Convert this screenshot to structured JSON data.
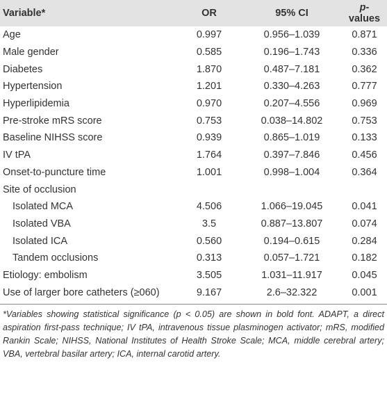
{
  "header": {
    "variable": "Variable*",
    "or": "OR",
    "ci": "95% CI",
    "p": {
      "italic": "p",
      "rest": "-values"
    }
  },
  "rows": [
    {
      "variable": "Age",
      "or": "0.997",
      "ci": "0.956–1.039",
      "p": "0.871"
    },
    {
      "variable": "Male gender",
      "or": "0.585",
      "ci": "0.196–1.743",
      "p": "0.336"
    },
    {
      "variable": "Diabetes",
      "or": "1.870",
      "ci": "0.487–7.181",
      "p": "0.362"
    },
    {
      "variable": "Hypertension",
      "or": "1.201",
      "ci": "0.330–4.263",
      "p": "0.777"
    },
    {
      "variable": "Hyperlipidemia",
      "or": "0.970",
      "ci": "0.207–4.556",
      "p": "0.969"
    },
    {
      "variable": "Pre-stroke mRS score",
      "or": "0.753",
      "ci": "0.038–14.802",
      "p": "0.753"
    },
    {
      "variable": "Baseline NIHSS score",
      "or": "0.939",
      "ci": "0.865–1.019",
      "p": "0.133"
    },
    {
      "variable": "IV tPA",
      "or": "1.764",
      "ci": "0.397–7.846",
      "p": "0.456"
    },
    {
      "variable": "Onset-to-puncture time",
      "or": "1.001",
      "ci": "0.998–1.004",
      "p": "0.364"
    },
    {
      "group": "Site of occlusion",
      "rows": [
        {
          "variable": "Isolated MCA",
          "or": "4.506",
          "ci": "1.066–19.045",
          "p": "0.041"
        },
        {
          "variable": "Isolated VBA",
          "or": "3.5",
          "ci": "0.887–13.807",
          "p": "0.074"
        },
        {
          "variable": "Isolated ICA",
          "or": "0.560",
          "ci": "0.194–0.615",
          "p": "0.284"
        },
        {
          "variable": "Tandem occlusions",
          "or": "0.313",
          "ci": "0.057–1.721",
          "p": "0.182"
        }
      ]
    },
    {
      "variable": "Etiology: embolism",
      "or": "3.505",
      "ci": "1.031–11.917",
      "p": "0.045"
    },
    {
      "variable": "Use of larger bore catheters (≥060)",
      "or": "9.167",
      "ci": "2.6–32.322",
      "p": "0.001"
    }
  ],
  "footnote": "*Variables showing statistical significance (p < 0.05) are shown in bold font. ADAPT, a direct aspiration first-pass technique; IV tPA, intravenous tissue plasminogen activator; mRS, modified Rankin Scale; NIHSS, National Institutes of Health Stroke Scale; MCA, middle cerebral artery; VBA, vertebral basilar artery; ICA, internal carotid artery."
}
